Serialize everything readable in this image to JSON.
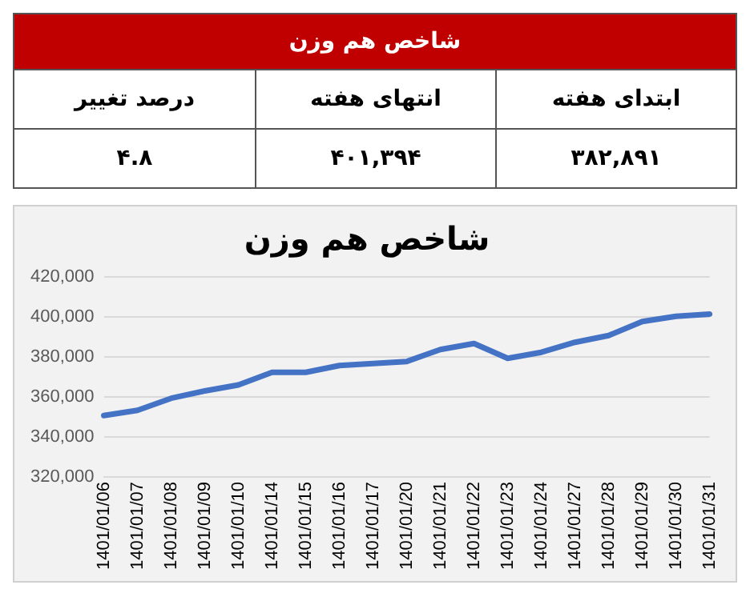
{
  "chart_data": [
    {
      "type": "other",
      "title": "شاخص هم وزن",
      "annotations": [
        "ابتدای هفته",
        "انتهای هفته",
        "درصد تغییر",
        "۳۸۲,۸۹۱",
        "۴۰۱,۳۹۴",
        "۴.۸"
      ]
    },
    {
      "type": "line",
      "title": "شاخص هم وزن",
      "categories": [
        "1401/01/06",
        "1401/01/07",
        "1401/01/08",
        "1401/01/09",
        "1401/01/10",
        "1401/01/14",
        "1401/01/15",
        "1401/01/16",
        "1401/01/17",
        "1401/01/20",
        "1401/01/21",
        "1401/01/22",
        "1401/01/23",
        "1401/01/24",
        "1401/01/27",
        "1401/01/28",
        "1401/01/29",
        "1401/01/30",
        "1401/01/31"
      ],
      "series": [
        {
          "color": "#4472c4",
          "values": [
            350700,
            353300,
            359300,
            363000,
            366000,
            372300,
            372300,
            375700,
            376700,
            377700,
            383700,
            386700,
            379300,
            382300,
            387300,
            390700,
            397700,
            400300,
            401400
          ]
        }
      ],
      "ylim": [
        320000,
        420000
      ],
      "yticks": [
        {
          "value": 320000,
          "label": "320,000"
        },
        {
          "value": 340000,
          "label": "340,000"
        },
        {
          "value": 360000,
          "label": "360,000"
        },
        {
          "value": 380000,
          "label": "380,000"
        },
        {
          "value": 400000,
          "label": "400,000"
        },
        {
          "value": 420000,
          "label": "420,000"
        }
      ],
      "grid": "y",
      "legend": false,
      "marker": "none",
      "line_style": "solid"
    }
  ]
}
